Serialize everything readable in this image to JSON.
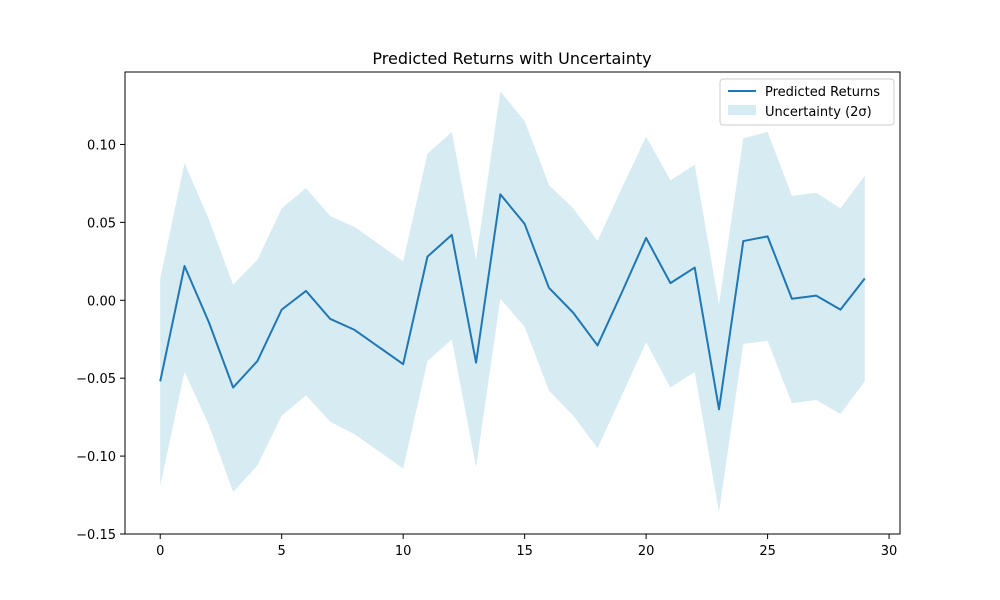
{
  "chart_data": {
    "type": "line",
    "title": "Predicted Returns with Uncertainty",
    "xlabel": "",
    "ylabel": "",
    "xlim": [
      -1.45,
      30.45
    ],
    "ylim": [
      -0.15,
      0.1465
    ],
    "xticks": [
      0,
      5,
      10,
      15,
      20,
      25,
      30
    ],
    "xtick_labels": [
      "0",
      "5",
      "10",
      "15",
      "20",
      "25",
      "30"
    ],
    "yticks": [
      -0.15,
      -0.1,
      -0.05,
      0.0,
      0.05,
      0.1
    ],
    "ytick_labels": [
      "−0.15",
      "−0.10",
      "−0.05",
      "0.00",
      "0.05",
      "0.10"
    ],
    "grid": false,
    "legend_position": "top-right",
    "x": [
      0,
      1,
      2,
      3,
      4,
      5,
      6,
      7,
      8,
      9,
      10,
      11,
      12,
      13,
      14,
      15,
      16,
      17,
      18,
      19,
      20,
      21,
      22,
      23,
      24,
      25,
      26,
      27,
      28,
      29
    ],
    "series": [
      {
        "name": "Predicted Returns",
        "color": "#1f77b4",
        "values": [
          -0.052,
          0.022,
          -0.014,
          -0.056,
          -0.039,
          -0.006,
          0.006,
          -0.012,
          -0.019,
          -0.03,
          -0.041,
          0.028,
          0.042,
          -0.04,
          0.068,
          0.049,
          0.008,
          -0.008,
          -0.029,
          0.005,
          0.04,
          0.011,
          0.021,
          -0.07,
          0.038,
          0.041,
          0.001,
          0.003,
          -0.006,
          0.014
        ]
      }
    ],
    "band": {
      "name": "Uncertainty (2σ)",
      "color": "#add8e6",
      "upper": [
        0.014,
        0.088,
        0.052,
        0.01,
        0.026,
        0.059,
        0.072,
        0.054,
        0.047,
        0.036,
        0.025,
        0.094,
        0.108,
        0.026,
        0.134,
        0.115,
        0.074,
        0.059,
        0.038,
        0.072,
        0.105,
        0.077,
        0.087,
        -0.003,
        0.104,
        0.108,
        0.067,
        0.069,
        0.059,
        0.08
      ],
      "lower": [
        -0.119,
        -0.046,
        -0.08,
        -0.123,
        -0.106,
        -0.074,
        -0.061,
        -0.078,
        -0.086,
        -0.097,
        -0.108,
        -0.039,
        -0.025,
        -0.107,
        0.001,
        -0.017,
        -0.058,
        -0.074,
        -0.095,
        -0.061,
        -0.027,
        -0.056,
        -0.046,
        -0.136,
        -0.028,
        -0.026,
        -0.066,
        -0.064,
        -0.073,
        -0.052
      ]
    }
  }
}
